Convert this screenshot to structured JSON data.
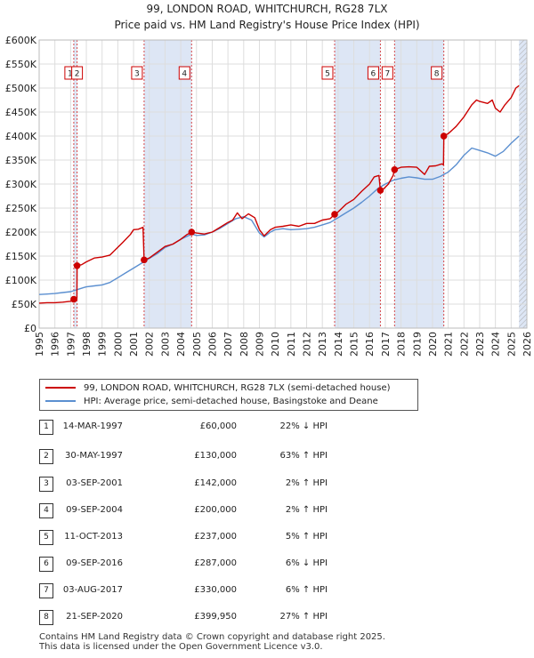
{
  "chart_data": {
    "type": "line",
    "title": "99, LONDON ROAD, WHITCHURCH, RG28 7LX",
    "subtitle": "Price paid vs. HM Land Registry's House Price Index (HPI)",
    "xlim": [
      1995,
      2026
    ],
    "ylim": [
      0,
      600000
    ],
    "x_ticks": [
      "1995",
      "1996",
      "1997",
      "1998",
      "1999",
      "2000",
      "2001",
      "2002",
      "2003",
      "2004",
      "2005",
      "2006",
      "2007",
      "2008",
      "2009",
      "2010",
      "2011",
      "2012",
      "2013",
      "2014",
      "2015",
      "2016",
      "2017",
      "2018",
      "2019",
      "2020",
      "2021",
      "2022",
      "2023",
      "2024",
      "2025",
      "2026"
    ],
    "y_ticks": [
      "£0",
      "£50K",
      "£100K",
      "£150K",
      "£200K",
      "£250K",
      "£300K",
      "£350K",
      "£400K",
      "£450K",
      "£500K",
      "£550K",
      "£600K"
    ],
    "y_tick_values": [
      0,
      50000,
      100000,
      150000,
      200000,
      250000,
      300000,
      350000,
      400000,
      450000,
      500000,
      550000,
      600000
    ],
    "colors": {
      "property": "#cc0000",
      "hpi": "#5b8fd0",
      "shade": "#dde6f5",
      "marker_line": "#cc0000",
      "grid": "#dddddd"
    },
    "series": [
      {
        "name": "99, LONDON ROAD, WHITCHURCH, RG28 7LX (semi-detached house)",
        "points": [
          [
            1995.0,
            52000
          ],
          [
            1995.5,
            53000
          ],
          [
            1996.0,
            53000
          ],
          [
            1996.5,
            54000
          ],
          [
            1997.0,
            56000
          ],
          [
            1997.2,
            60000
          ],
          [
            1997.4,
            60000
          ],
          [
            1997.41,
            130000
          ],
          [
            1997.7,
            132000
          ],
          [
            1998.0,
            138000
          ],
          [
            1998.5,
            146000
          ],
          [
            1999.0,
            148000
          ],
          [
            1999.5,
            152000
          ],
          [
            1999.9,
            165000
          ],
          [
            2000.3,
            178000
          ],
          [
            2000.8,
            195000
          ],
          [
            2001.0,
            205000
          ],
          [
            2001.3,
            206000
          ],
          [
            2001.6,
            210000
          ],
          [
            2001.67,
            142000
          ],
          [
            2002.0,
            146000
          ],
          [
            2002.5,
            158000
          ],
          [
            2003.0,
            170000
          ],
          [
            2003.5,
            175000
          ],
          [
            2004.0,
            185000
          ],
          [
            2004.4,
            195000
          ],
          [
            2004.7,
            200000
          ],
          [
            2005.0,
            198000
          ],
          [
            2005.5,
            196000
          ],
          [
            2006.0,
            200000
          ],
          [
            2006.5,
            210000
          ],
          [
            2007.0,
            220000
          ],
          [
            2007.3,
            225000
          ],
          [
            2007.6,
            240000
          ],
          [
            2007.9,
            228000
          ],
          [
            2008.3,
            238000
          ],
          [
            2008.7,
            230000
          ],
          [
            2009.0,
            205000
          ],
          [
            2009.3,
            192000
          ],
          [
            2009.7,
            205000
          ],
          [
            2010.0,
            210000
          ],
          [
            2010.5,
            212000
          ],
          [
            2011.0,
            215000
          ],
          [
            2011.5,
            212000
          ],
          [
            2012.0,
            218000
          ],
          [
            2012.5,
            218000
          ],
          [
            2013.0,
            225000
          ],
          [
            2013.5,
            228000
          ],
          [
            2013.78,
            237000
          ],
          [
            2014.0,
            242000
          ],
          [
            2014.5,
            258000
          ],
          [
            2015.0,
            268000
          ],
          [
            2015.5,
            285000
          ],
          [
            2016.0,
            300000
          ],
          [
            2016.3,
            315000
          ],
          [
            2016.6,
            318000
          ],
          [
            2016.69,
            287000
          ],
          [
            2016.9,
            290000
          ],
          [
            2017.2,
            300000
          ],
          [
            2017.5,
            318000
          ],
          [
            2017.59,
            330000
          ],
          [
            2018.0,
            335000
          ],
          [
            2018.5,
            336000
          ],
          [
            2019.0,
            335000
          ],
          [
            2019.5,
            320000
          ],
          [
            2019.8,
            337000
          ],
          [
            2020.2,
            338000
          ],
          [
            2020.6,
            342000
          ],
          [
            2020.7,
            340000
          ],
          [
            2020.72,
            399950
          ],
          [
            2021.0,
            405000
          ],
          [
            2021.5,
            420000
          ],
          [
            2022.0,
            440000
          ],
          [
            2022.5,
            465000
          ],
          [
            2022.8,
            475000
          ],
          [
            2023.0,
            472000
          ],
          [
            2023.5,
            468000
          ],
          [
            2023.8,
            475000
          ],
          [
            2024.0,
            458000
          ],
          [
            2024.3,
            450000
          ],
          [
            2024.6,
            465000
          ],
          [
            2025.0,
            480000
          ],
          [
            2025.3,
            500000
          ],
          [
            2025.5,
            505000
          ]
        ]
      },
      {
        "name": "HPI: Average price, semi-detached house, Basingstoke and Deane",
        "points": [
          [
            1995.0,
            70000
          ],
          [
            1995.5,
            71000
          ],
          [
            1996.0,
            72000
          ],
          [
            1996.5,
            74000
          ],
          [
            1997.0,
            76000
          ],
          [
            1997.4,
            80000
          ],
          [
            1997.8,
            84000
          ],
          [
            1998.0,
            86000
          ],
          [
            1998.5,
            88000
          ],
          [
            1999.0,
            90000
          ],
          [
            1999.5,
            95000
          ],
          [
            2000.0,
            105000
          ],
          [
            2000.5,
            115000
          ],
          [
            2001.0,
            125000
          ],
          [
            2001.5,
            135000
          ],
          [
            2002.0,
            145000
          ],
          [
            2002.5,
            155000
          ],
          [
            2003.0,
            168000
          ],
          [
            2003.5,
            175000
          ],
          [
            2004.0,
            185000
          ],
          [
            2004.7,
            196000
          ],
          [
            2005.0,
            193000
          ],
          [
            2005.5,
            194000
          ],
          [
            2006.0,
            200000
          ],
          [
            2006.5,
            208000
          ],
          [
            2007.0,
            218000
          ],
          [
            2007.5,
            228000
          ],
          [
            2008.0,
            232000
          ],
          [
            2008.5,
            225000
          ],
          [
            2009.0,
            198000
          ],
          [
            2009.3,
            190000
          ],
          [
            2009.7,
            200000
          ],
          [
            2010.0,
            205000
          ],
          [
            2010.5,
            207000
          ],
          [
            2011.0,
            205000
          ],
          [
            2011.5,
            206000
          ],
          [
            2012.0,
            207000
          ],
          [
            2012.5,
            210000
          ],
          [
            2013.0,
            215000
          ],
          [
            2013.5,
            220000
          ],
          [
            2014.0,
            230000
          ],
          [
            2014.5,
            240000
          ],
          [
            2015.0,
            250000
          ],
          [
            2015.5,
            262000
          ],
          [
            2016.0,
            275000
          ],
          [
            2016.5,
            290000
          ],
          [
            2017.0,
            300000
          ],
          [
            2017.5,
            308000
          ],
          [
            2018.0,
            312000
          ],
          [
            2018.5,
            315000
          ],
          [
            2019.0,
            313000
          ],
          [
            2019.5,
            310000
          ],
          [
            2020.0,
            310000
          ],
          [
            2020.5,
            316000
          ],
          [
            2021.0,
            325000
          ],
          [
            2021.5,
            340000
          ],
          [
            2022.0,
            360000
          ],
          [
            2022.5,
            375000
          ],
          [
            2023.0,
            370000
          ],
          [
            2023.5,
            365000
          ],
          [
            2024.0,
            358000
          ],
          [
            2024.5,
            368000
          ],
          [
            2025.0,
            385000
          ],
          [
            2025.5,
            400000
          ]
        ]
      }
    ],
    "sale_markers": [
      {
        "label": "1",
        "x": 1997.2,
        "y": 60000
      },
      {
        "label": "2",
        "x": 1997.41,
        "y": 130000
      },
      {
        "label": "3",
        "x": 2001.67,
        "y": 142000
      },
      {
        "label": "4",
        "x": 2004.69,
        "y": 200000
      },
      {
        "label": "5",
        "x": 2013.78,
        "y": 237000
      },
      {
        "label": "6",
        "x": 2016.69,
        "y": 287000
      },
      {
        "label": "7",
        "x": 2017.59,
        "y": 330000
      },
      {
        "label": "8",
        "x": 2020.72,
        "y": 399950
      }
    ],
    "shaded_ranges": [
      [
        1997.2,
        1997.41
      ],
      [
        2001.67,
        2004.69
      ],
      [
        2013.78,
        2016.69
      ],
      [
        2017.59,
        2020.72
      ],
      [
        2025.5,
        2026
      ]
    ],
    "hatched_range": [
      2025.5,
      2026
    ]
  },
  "legend": {
    "property_label": "99, LONDON ROAD, WHITCHURCH, RG28 7LX (semi-detached house)",
    "hpi_label": "HPI: Average price, semi-detached house, Basingstoke and Deane"
  },
  "sales": [
    {
      "num": "1",
      "date": "14-MAR-1997",
      "price": "£60,000",
      "hpi": "22% ↓ HPI"
    },
    {
      "num": "2",
      "date": "30-MAY-1997",
      "price": "£130,000",
      "hpi": "63% ↑ HPI"
    },
    {
      "num": "3",
      "date": "03-SEP-2001",
      "price": "£142,000",
      "hpi": "2% ↑ HPI"
    },
    {
      "num": "4",
      "date": "09-SEP-2004",
      "price": "£200,000",
      "hpi": "2% ↑ HPI"
    },
    {
      "num": "5",
      "date": "11-OCT-2013",
      "price": "£237,000",
      "hpi": "5% ↑ HPI"
    },
    {
      "num": "6",
      "date": "09-SEP-2016",
      "price": "£287,000",
      "hpi": "6% ↓ HPI"
    },
    {
      "num": "7",
      "date": "03-AUG-2017",
      "price": "£330,000",
      "hpi": "6% ↑ HPI"
    },
    {
      "num": "8",
      "date": "21-SEP-2020",
      "price": "£399,950",
      "hpi": "27% ↑ HPI"
    }
  ],
  "footer": {
    "line1": "Contains HM Land Registry data © Crown copyright and database right 2025.",
    "line2": "This data is licensed under the Open Government Licence v3.0."
  }
}
